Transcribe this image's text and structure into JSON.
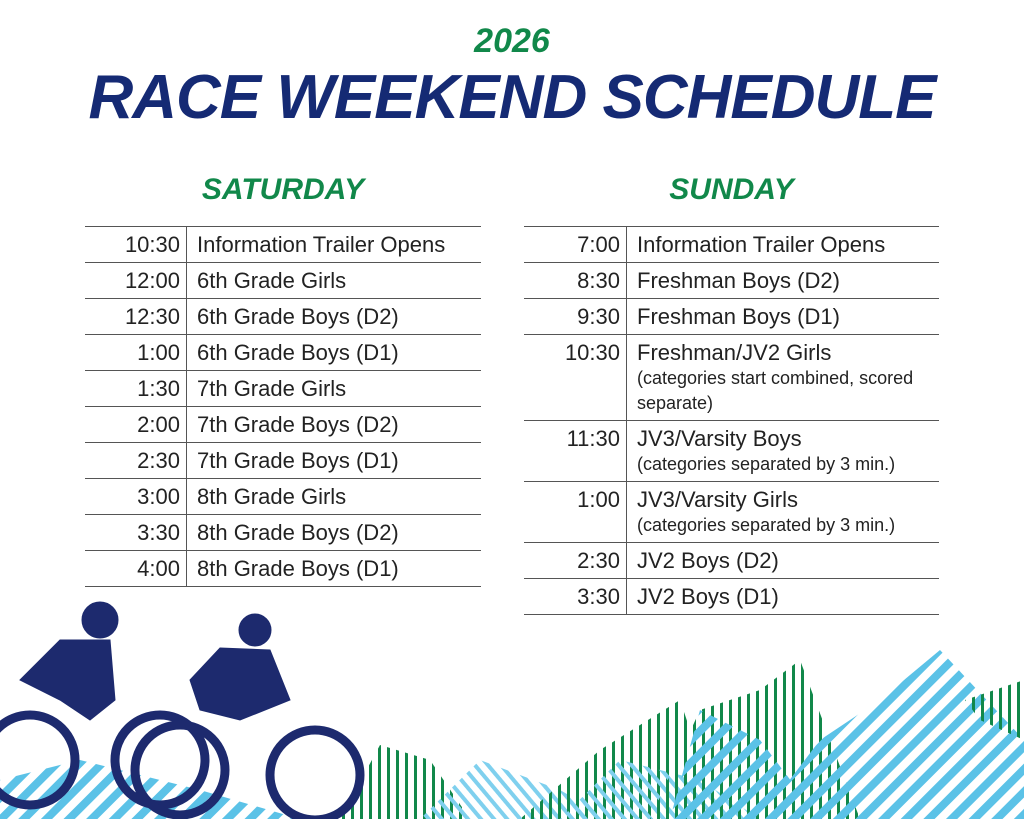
{
  "header": {
    "year": "2026",
    "title": "RACE WEEKEND SCHEDULE"
  },
  "days": [
    {
      "name": "SATURDAY",
      "rows": [
        {
          "time": "10:30",
          "event": "Information Trailer Opens"
        },
        {
          "time": "12:00",
          "event": "6th Grade Girls"
        },
        {
          "time": "12:30",
          "event": "6th Grade Boys (D2)"
        },
        {
          "time": "1:00",
          "event": "6th Grade Boys (D1)"
        },
        {
          "time": "1:30",
          "event": "7th Grade Girls"
        },
        {
          "time": "2:00",
          "event": "7th Grade Boys (D2)"
        },
        {
          "time": "2:30",
          "event": "7th Grade Boys (D1)"
        },
        {
          "time": "3:00",
          "event": "8th Grade Girls"
        },
        {
          "time": "3:30",
          "event": "8th Grade Boys (D2)"
        },
        {
          "time": "4:00",
          "event": "8th Grade Boys (D1)"
        }
      ]
    },
    {
      "name": "SUNDAY",
      "rows": [
        {
          "time": "7:00",
          "event": "Information Trailer Opens"
        },
        {
          "time": "8:30",
          "event": "Freshman Boys (D2)"
        },
        {
          "time": "9:30",
          "event": "Freshman Boys (D1)"
        },
        {
          "time": "10:30",
          "event": "Freshman/JV2 Girls",
          "note": "(categories start combined, scored separate)"
        },
        {
          "time": "11:30",
          "event": "JV3/Varsity Boys",
          "note": "(categories separated by 3 min.)"
        },
        {
          "time": "1:00",
          "event": "JV3/Varsity Girls",
          "note": "(categories separated by 3 min.)"
        },
        {
          "time": "2:30",
          "event": "JV2 Boys (D2)"
        },
        {
          "time": "3:30",
          "event": "JV2 Boys (D1)"
        }
      ]
    }
  ]
}
